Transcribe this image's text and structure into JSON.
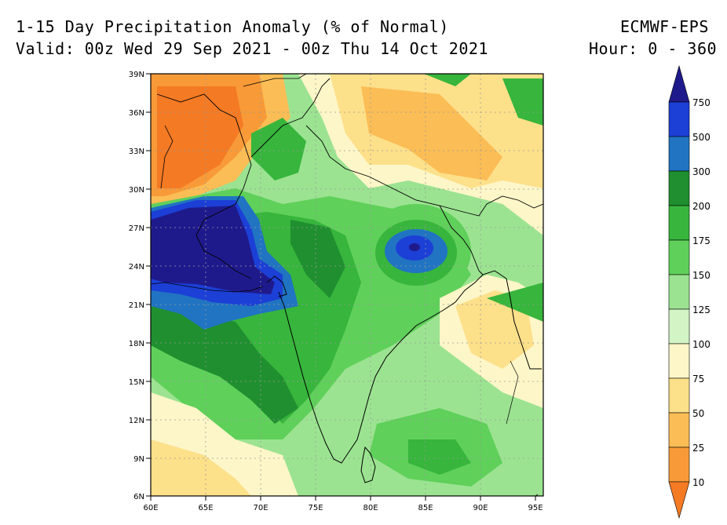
{
  "header": {
    "title_line1": "1-15 Day Precipitation Anomaly (% of Normal)",
    "title_line2": "Valid: 00z Wed 29 Sep 2021 - 00z Thu 14 Oct 2021",
    "model": "ECMWF-EPS",
    "hours": "Hour: 0 - 360"
  },
  "axes": {
    "lat_labels": [
      "39N",
      "36N",
      "33N",
      "30N",
      "27N",
      "24N",
      "21N",
      "18N",
      "15N",
      "12N",
      "9N",
      "6N"
    ],
    "lon_labels": [
      "60E",
      "65E",
      "70E",
      "75E",
      "80E",
      "85E",
      "90E",
      "95E"
    ]
  },
  "colorbar": {
    "labels": [
      "750",
      "500",
      "300",
      "200",
      "175",
      "150",
      "125",
      "100",
      "75",
      "50",
      "25",
      "10"
    ],
    "colors": {
      "750+": "#1f1a8c",
      "500-750": "#1c3fd6",
      "300-500": "#2074c2",
      "200-300": "#1f8f2f",
      "175-200": "#37b53c",
      "150-175": "#5fd05a",
      "125-150": "#9be391",
      "100-125": "#d3f5c6",
      "75-100": "#fdf6c8",
      "50-75": "#fde08a",
      "25-50": "#fbbd55",
      "10-25": "#f89a37",
      "<10": "#f47a24"
    }
  }
}
